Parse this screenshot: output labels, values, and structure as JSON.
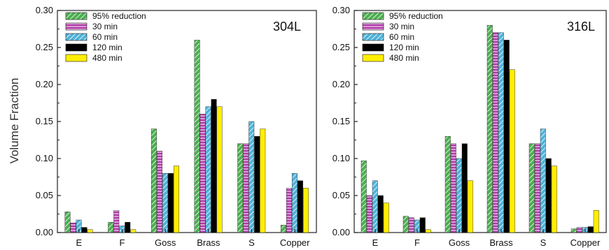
{
  "ylabel": "Volume Fraction",
  "colors": {
    "95% reduction": "#4caf50",
    "30 min": "#b03aa8",
    "60 min": "#4fb3d9",
    "120 min": "#000000",
    "480 min": "#ffee00"
  },
  "chart_data": [
    {
      "type": "bar",
      "title": "304L",
      "xlabel": "",
      "ylabel": "Volume Fraction",
      "ylim": [
        0,
        0.3
      ],
      "yticks": [
        "0.00",
        "0.05",
        "0.10",
        "0.15",
        "0.20",
        "0.25",
        "0.30"
      ],
      "legend": "top-left",
      "grid": false,
      "categories": [
        "E",
        "F",
        "Goss",
        "Brass",
        "S",
        "Copper"
      ],
      "series": [
        {
          "name": "95% reduction",
          "values": [
            0.028,
            0.014,
            0.14,
            0.26,
            0.12,
            0.01
          ]
        },
        {
          "name": "30 min",
          "values": [
            0.013,
            0.03,
            0.11,
            0.16,
            0.12,
            0.06
          ]
        },
        {
          "name": "60 min",
          "values": [
            0.017,
            0.009,
            0.08,
            0.17,
            0.15,
            0.08
          ]
        },
        {
          "name": "120 min",
          "values": [
            0.007,
            0.014,
            0.08,
            0.18,
            0.13,
            0.07
          ]
        },
        {
          "name": "480 min",
          "values": [
            0.004,
            0.004,
            0.09,
            0.17,
            0.14,
            0.06
          ]
        }
      ]
    },
    {
      "type": "bar",
      "title": "316L",
      "xlabel": "",
      "ylabel": "",
      "ylim": [
        0,
        0.3
      ],
      "yticks": [
        "0.00",
        "0.05",
        "0.10",
        "0.15",
        "0.20",
        "0.25",
        "0.30"
      ],
      "legend": "top-left",
      "grid": false,
      "categories": [
        "E",
        "F",
        "Goss",
        "Brass",
        "S",
        "Copper"
      ],
      "series": [
        {
          "name": "95% reduction",
          "values": [
            0.097,
            0.022,
            0.13,
            0.28,
            0.12,
            0.005
          ]
        },
        {
          "name": "30 min",
          "values": [
            0.05,
            0.02,
            0.12,
            0.27,
            0.12,
            0.007
          ]
        },
        {
          "name": "60 min",
          "values": [
            0.07,
            0.017,
            0.1,
            0.27,
            0.14,
            0.007
          ]
        },
        {
          "name": "120 min",
          "values": [
            0.05,
            0.02,
            0.12,
            0.26,
            0.1,
            0.008
          ]
        },
        {
          "name": "480 min",
          "values": [
            0.04,
            0.004,
            0.07,
            0.22,
            0.09,
            0.03
          ]
        }
      ]
    }
  ]
}
